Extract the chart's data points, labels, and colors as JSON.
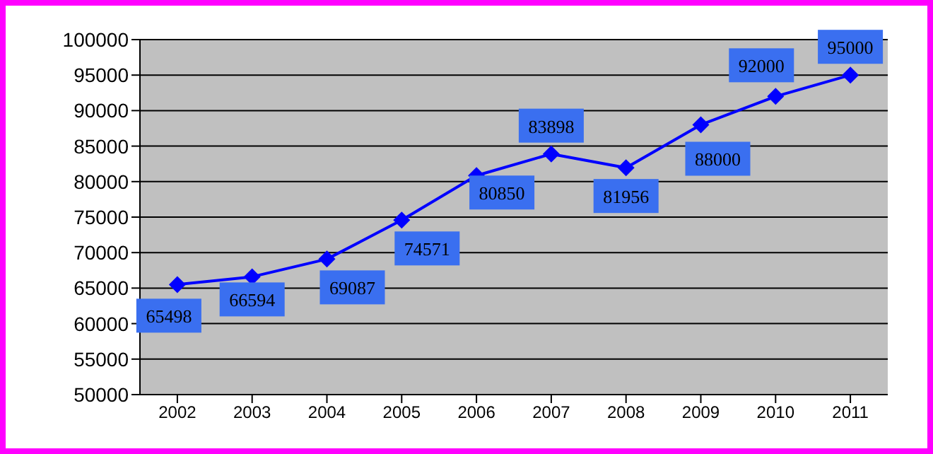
{
  "chart_data": {
    "type": "line",
    "categories": [
      "2002",
      "2003",
      "2004",
      "2005",
      "2006",
      "2007",
      "2008",
      "2009",
      "2010",
      "2011"
    ],
    "values": [
      65498,
      66594,
      69087,
      74571,
      80850,
      83898,
      81956,
      88000,
      92000,
      95000
    ],
    "color": "#0000ff",
    "ylim": [
      50000,
      100000
    ],
    "yticks": [
      50000,
      55000,
      60000,
      65000,
      70000,
      75000,
      80000,
      85000,
      90000,
      95000,
      100000
    ],
    "grid": "y",
    "marker": "diamond",
    "data_labels": true
  }
}
